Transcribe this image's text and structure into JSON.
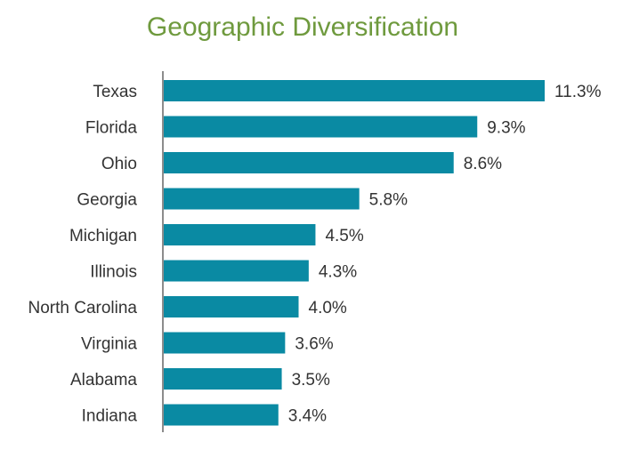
{
  "chart_data": {
    "type": "bar",
    "orientation": "horizontal",
    "title": "Geographic Diversification",
    "xlabel": "",
    "ylabel": "",
    "categories": [
      "Texas",
      "Florida",
      "Ohio",
      "Georgia",
      "Michigan",
      "Illinois",
      "North Carolina",
      "Virginia",
      "Alabama",
      "Indiana"
    ],
    "values": [
      11.3,
      9.3,
      8.6,
      5.8,
      4.5,
      4.3,
      4.0,
      3.6,
      3.5,
      3.4
    ],
    "value_labels": [
      "11.3%",
      "9.3%",
      "8.6%",
      "5.8%",
      "4.5%",
      "4.3%",
      "4.0%",
      "3.6%",
      "3.5%",
      "3.4%"
    ],
    "xlim": [
      0,
      11.3
    ],
    "grid": false,
    "legend": "none",
    "colors": {
      "bar": "#0a8aa3",
      "title": "#6f9a3e",
      "axis": "#8c8c8c",
      "text": "#333333"
    }
  }
}
